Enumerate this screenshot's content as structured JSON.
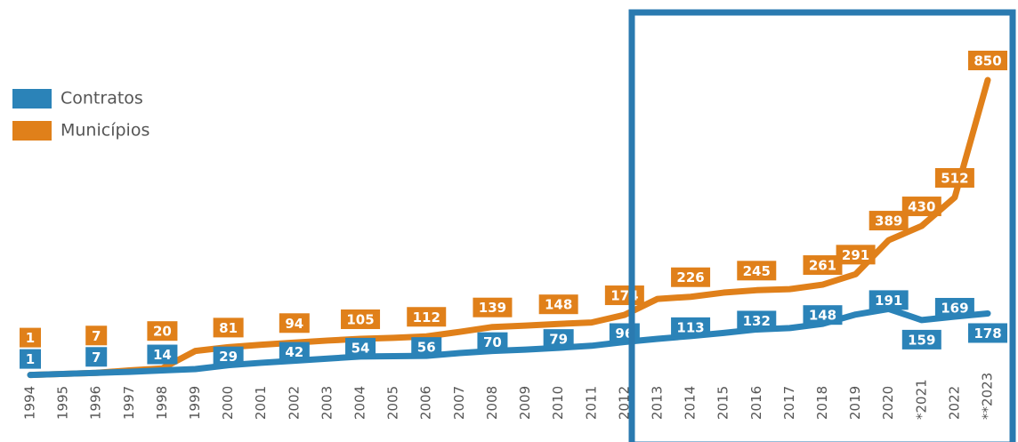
{
  "chart_data": {
    "type": "line",
    "categories": [
      "1994",
      "1995",
      "1996",
      "1997",
      "1998",
      "1999",
      "2000",
      "2001",
      "2002",
      "2003",
      "2004",
      "2005",
      "2006",
      "2007",
      "2008",
      "2009",
      "2010",
      "2011",
      "2012",
      "2013",
      "2014",
      "2015",
      "2016",
      "2017",
      "2018",
      "2019",
      "2020",
      "*2021",
      "2022",
      "**2023"
    ],
    "ylim": [
      0,
      850
    ],
    "series": [
      {
        "name": "Contratos",
        "color": "#2b83b8",
        "values": [
          1,
          4,
          7,
          10,
          14,
          18,
          29,
          36,
          42,
          48,
          54,
          55,
          56,
          64,
          70,
          74,
          79,
          85,
          96,
          105,
          113,
          122,
          132,
          136,
          148,
          175,
          191,
          159,
          169,
          178
        ],
        "value_labels": [
          "1",
          null,
          "7",
          null,
          "14",
          null,
          "29",
          null,
          "42",
          null,
          "54",
          null,
          "56",
          null,
          "70",
          null,
          "79",
          null,
          "96",
          null,
          "113",
          null,
          "132",
          null,
          "148",
          null,
          "191",
          "159",
          "169",
          "178"
        ]
      },
      {
        "name": "Municípios",
        "color": "#e0801a",
        "values": [
          1,
          4,
          7,
          14,
          20,
          70,
          81,
          88,
          94,
          100,
          105,
          108,
          112,
          125,
          139,
          143,
          148,
          152,
          174,
          220,
          226,
          238,
          245,
          248,
          261,
          291,
          389,
          430,
          512,
          850
        ],
        "value_labels": [
          "1",
          null,
          "7",
          null,
          "20",
          null,
          "81",
          null,
          "94",
          null,
          "105",
          null,
          "112",
          null,
          "139",
          null,
          "148",
          null,
          "174",
          null,
          "226",
          null,
          "245",
          null,
          "261",
          "291",
          "389",
          "430",
          "512",
          "850"
        ]
      }
    ]
  }
}
